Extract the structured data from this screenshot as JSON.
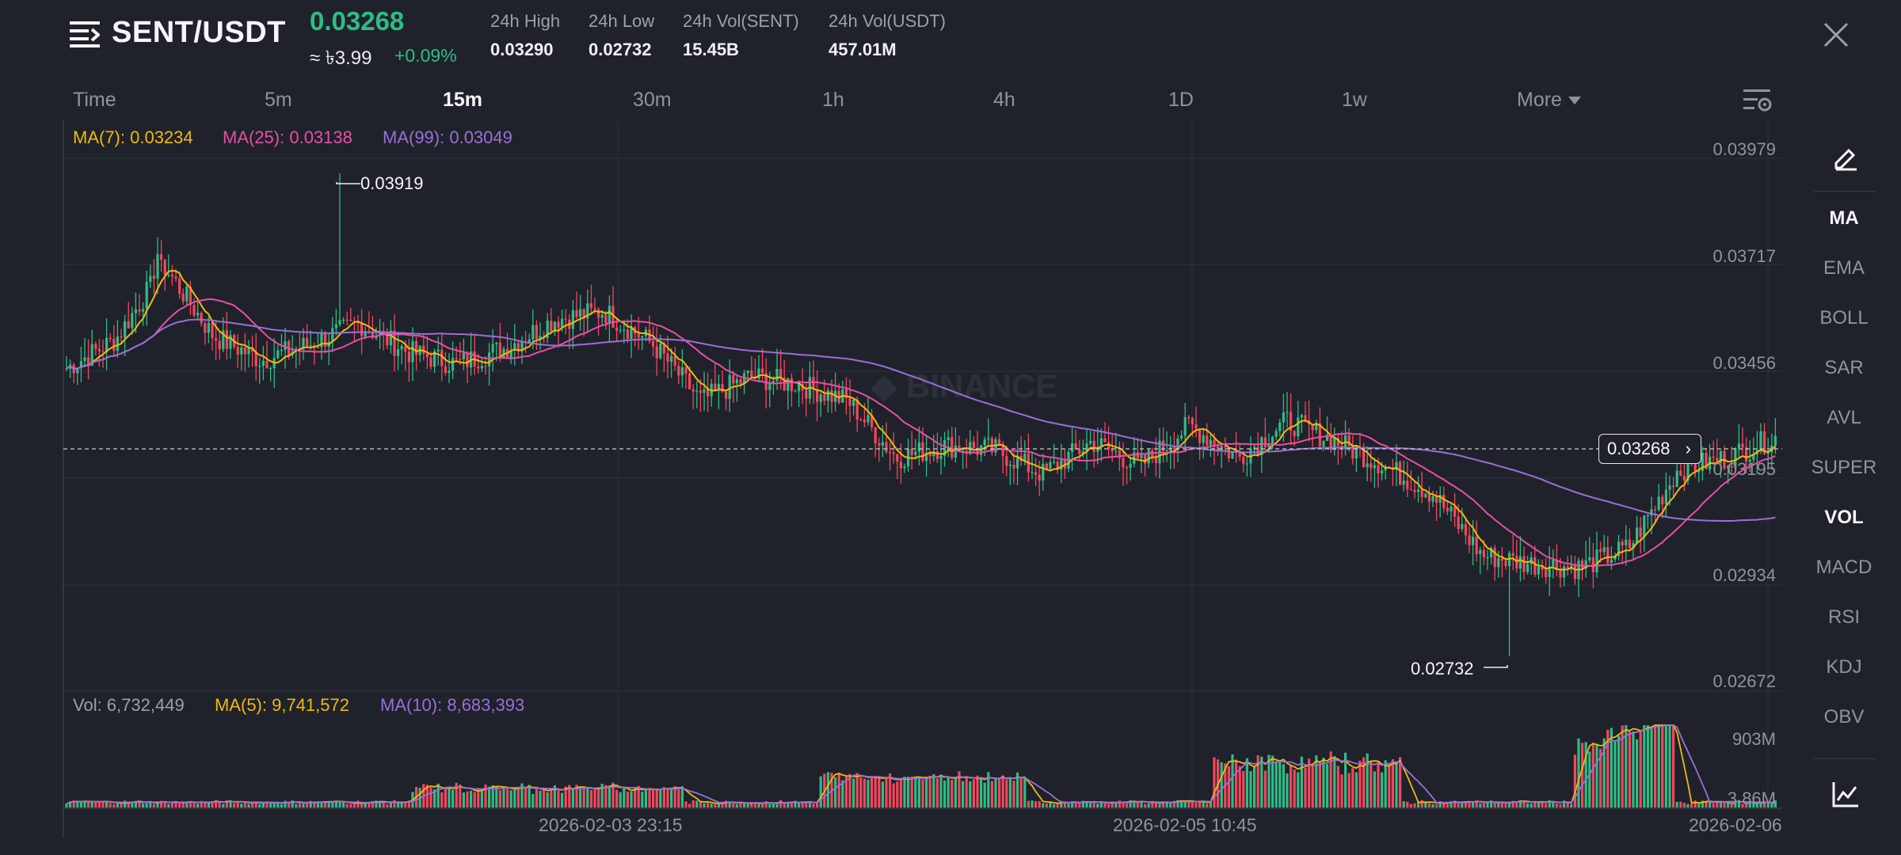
{
  "header": {
    "pair": "SENT/USDT",
    "last_price": "0.03268",
    "approx": "≈ ৳3.99",
    "change": "+0.09%",
    "stats": [
      {
        "label": "24h High",
        "value": "0.03290"
      },
      {
        "label": "24h Low",
        "value": "0.02732"
      },
      {
        "label": "24h Vol(SENT)",
        "value": "15.45B"
      },
      {
        "label": "24h Vol(USDT)",
        "value": "457.01M"
      }
    ]
  },
  "tabs": [
    "Time",
    "5m",
    "15m",
    "30m",
    "1h",
    "4h",
    "1D",
    "1w",
    "More"
  ],
  "active_tab": "15m",
  "ma_legend": {
    "ma7": "MA(7): 0.03234",
    "ma25": "MA(25): 0.03138",
    "ma99": "MA(99): 0.03049"
  },
  "price_axis": [
    "0.03979",
    "0.03717",
    "0.03456",
    "0.03195",
    "0.02934",
    "0.02672"
  ],
  "current_price_tag": "0.03268",
  "high_marker": "0.03919",
  "low_marker": "0.02732",
  "watermark": "BINANCE",
  "vol_legend": {
    "vol": "Vol: 6,732,449",
    "ma5": "MA(5): 9,741,572",
    "ma10": "MA(10): 8,683,393"
  },
  "vol_axis": [
    "903M",
    "3.86M"
  ],
  "time_axis": [
    "2026-02-03 23:15",
    "2026-02-05 10:45",
    "2026-02-06"
  ],
  "right_panel": {
    "items": [
      "MA",
      "EMA",
      "BOLL",
      "SAR",
      "AVL",
      "SUPER",
      "VOL",
      "MACD",
      "RSI",
      "KDJ",
      "OBV"
    ],
    "active": [
      "MA",
      "VOL"
    ]
  },
  "colors": {
    "up": "#2ebd85",
    "down": "#f6465d",
    "ma7": "#f0b90b",
    "ma25": "#e84fa6",
    "ma99": "#9b6fd6",
    "background": "#1f222b"
  },
  "chart_data": {
    "type": "candlestick",
    "timeframe": "15m",
    "ylim": [
      0.02672,
      0.03979
    ],
    "x_labels": [
      "2026-02-03 23:15",
      "2026-02-05 10:45",
      "2026-02-06"
    ],
    "key_points": [
      {
        "label": "high",
        "value": 0.03919
      },
      {
        "label": "low",
        "value": 0.02732
      },
      {
        "label": "last",
        "value": 0.03268
      }
    ],
    "approx_close_path": [
      0.0344,
      0.0351,
      0.0369,
      0.0352,
      0.0346,
      0.035,
      0.0355,
      0.0348,
      0.0345,
      0.0349,
      0.0356,
      0.0358,
      0.035,
      0.0336,
      0.0342,
      0.034,
      0.0336,
      0.0322,
      0.0325,
      0.0324,
      0.0318,
      0.0326,
      0.032,
      0.033,
      0.0322,
      0.0331,
      0.0326,
      0.032,
      0.0313,
      0.0298,
      0.0296,
      0.0295,
      0.03,
      0.0319,
      0.0322,
      0.0327
    ],
    "ma_latest": {
      "MA(7)": 0.03234,
      "MA(25)": 0.03138,
      "MA(99)": 0.03049
    },
    "volume": {
      "latest": 6732449,
      "MA(5)": 9741572,
      "MA(10)": 8683393,
      "axis_max_label": "903M"
    }
  }
}
